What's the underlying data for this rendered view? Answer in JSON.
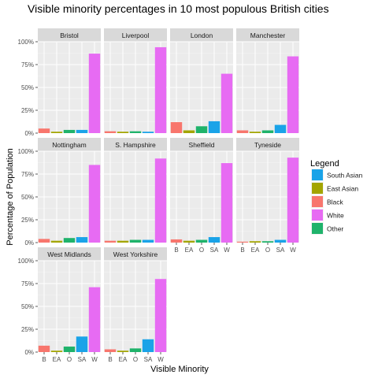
{
  "chart_data": {
    "type": "bar",
    "title": "Visible minority percentages in 10 most populous British cities",
    "xlabel": "Visible Minority",
    "ylabel": "Percentage of  Population",
    "categories": [
      "B",
      "EA",
      "O",
      "SA",
      "W"
    ],
    "ylim": [
      0,
      100
    ],
    "yticks": [
      "0%",
      "25%",
      "50%",
      "75%",
      "100%"
    ],
    "ytick_values": [
      0,
      25,
      50,
      75,
      100
    ],
    "grid": true,
    "legend_position": "right",
    "legend": {
      "title": "Legend",
      "entries": [
        {
          "label": "South Asian",
          "color": "#1aa3e8"
        },
        {
          "label": "East Asian",
          "color": "#a3a500"
        },
        {
          "label": "Black",
          "color": "#f8766d"
        },
        {
          "label": "White",
          "color": "#e76bf3"
        },
        {
          "label": "Other",
          "color": "#1fb36b"
        }
      ]
    },
    "category_colors": [
      "#f8766d",
      "#a3a500",
      "#1fb36b",
      "#1aa3e8",
      "#e76bf3"
    ],
    "panels": [
      {
        "name": "Bristol",
        "values": [
          5,
          1.5,
          3.5,
          3.5,
          87
        ]
      },
      {
        "name": "Liverpool",
        "values": [
          2,
          1.5,
          2,
          1.5,
          94
        ]
      },
      {
        "name": "London",
        "values": [
          12,
          3,
          7.5,
          13,
          65
        ]
      },
      {
        "name": "Manchester",
        "values": [
          3,
          1.5,
          3,
          9,
          84
        ]
      },
      {
        "name": "Nottingham",
        "values": [
          4,
          2,
          5,
          6,
          85
        ]
      },
      {
        "name": "S. Hampshire",
        "values": [
          2,
          2,
          3,
          3,
          92
        ]
      },
      {
        "name": "Sheffield",
        "values": [
          3.5,
          2,
          3,
          6,
          87
        ]
      },
      {
        "name": "Tyneside",
        "values": [
          1,
          1.5,
          1.5,
          3,
          93
        ]
      },
      {
        "name": "West Midlands",
        "values": [
          7,
          1.5,
          6,
          17,
          71
        ]
      },
      {
        "name": "West Yorkshire",
        "values": [
          3,
          1.5,
          4,
          14,
          80
        ]
      }
    ]
  }
}
